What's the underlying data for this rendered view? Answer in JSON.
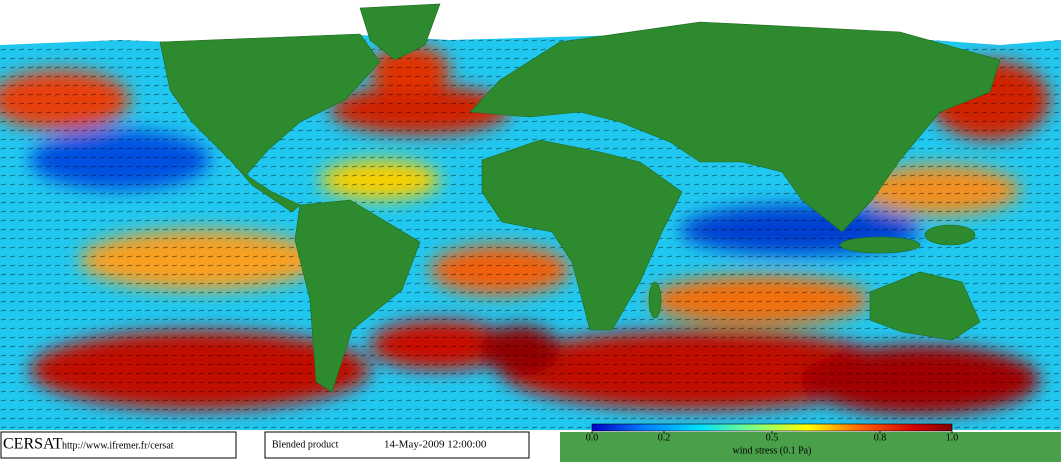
{
  "footer": {
    "logo": "CERSAT",
    "url": "http://www.ifremer.fr/cersat",
    "product": "Blended product",
    "date": "14-May-2009 12:00:00"
  },
  "colorbar": {
    "label": "wind stress (0.1 Pa)",
    "lim": [
      0,
      1
    ],
    "ticks": [
      {
        "value": 0,
        "label": "0.0"
      },
      0.2,
      0.5,
      0.8,
      {
        "value": 1,
        "label": "1.0"
      }
    ]
  }
}
